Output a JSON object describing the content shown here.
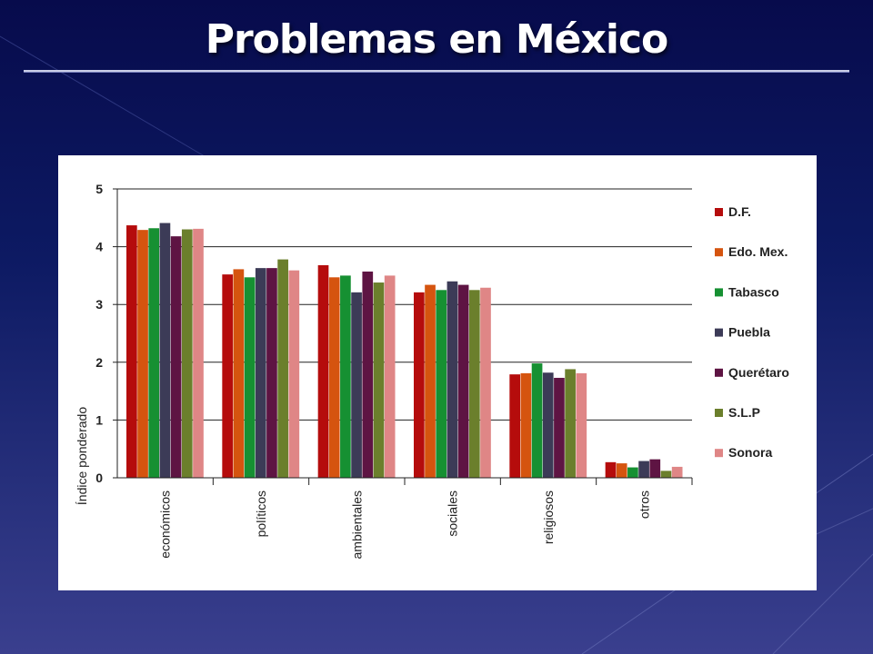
{
  "slide": {
    "title": "Problemas en México"
  },
  "chart_data": {
    "type": "bar",
    "title": "",
    "xlabel": "",
    "ylabel": "Índice ponderado",
    "ylim": [
      0,
      5
    ],
    "yticks": [
      "0",
      "1",
      "2",
      "3",
      "4",
      "5"
    ],
    "grid": true,
    "legend_position": "right",
    "categories": [
      "económicos",
      "políticos",
      "ambientales",
      "sociales",
      "religiosos",
      "otros"
    ],
    "series": [
      {
        "name": "D.F.",
        "color": "#b50c0c",
        "values": [
          4.37,
          3.52,
          3.68,
          3.21,
          1.79,
          0.27
        ]
      },
      {
        "name": "Edo. Mex.",
        "color": "#d5540f",
        "values": [
          4.29,
          3.61,
          3.47,
          3.34,
          1.81,
          0.25
        ]
      },
      {
        "name": "Tabasco",
        "color": "#169032",
        "values": [
          4.32,
          3.47,
          3.5,
          3.25,
          1.98,
          0.18
        ]
      },
      {
        "name": "Puebla",
        "color": "#3c3b57",
        "values": [
          4.41,
          3.63,
          3.21,
          3.4,
          1.82,
          0.29
        ]
      },
      {
        "name": "Querétaro",
        "color": "#5e1443",
        "values": [
          4.18,
          3.63,
          3.57,
          3.34,
          1.73,
          0.32
        ]
      },
      {
        "name": "S.L.P",
        "color": "#6b7f2c",
        "values": [
          4.3,
          3.78,
          3.38,
          3.25,
          1.88,
          0.12
        ]
      },
      {
        "name": "Sonora",
        "color": "#df8686",
        "values": [
          4.31,
          3.59,
          3.5,
          3.29,
          1.81,
          0.19
        ]
      }
    ]
  }
}
